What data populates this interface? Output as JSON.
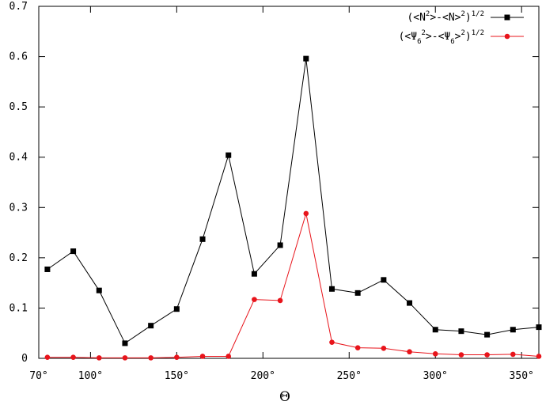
{
  "chart_data": {
    "type": "line",
    "xlabel": "Θ",
    "ylabel": "",
    "xlim": [
      70,
      360
    ],
    "ylim": [
      0,
      0.7
    ],
    "x_ticks": [
      70,
      100,
      150,
      200,
      250,
      300,
      350
    ],
    "x_tick_labels": [
      "70°",
      "100°",
      "150°",
      "200°",
      "250°",
      "300°",
      "350°"
    ],
    "y_ticks": [
      0,
      0.1,
      0.2,
      0.3,
      0.4,
      0.5,
      0.6,
      0.7
    ],
    "y_tick_labels": [
      "0",
      "0.1",
      "0.2",
      "0.3",
      "0.4",
      "0.5",
      "0.6",
      "0.7"
    ],
    "legend_position": "top-right",
    "grid": false,
    "x": [
      75,
      90,
      105,
      120,
      135,
      150,
      165,
      180,
      195,
      210,
      225,
      240,
      255,
      270,
      285,
      300,
      315,
      330,
      345,
      360
    ],
    "series": [
      {
        "name": "(<N2>-<N>2)1/2",
        "legend_main": [
          "(<N",
          ">-<N>",
          ")"
        ],
        "legend_sup": [
          "2",
          "2",
          "1/2"
        ],
        "color": "#000000",
        "marker": "square",
        "values": [
          0.177,
          0.213,
          0.135,
          0.03,
          0.065,
          0.098,
          0.237,
          0.404,
          0.168,
          0.225,
          0.596,
          0.138,
          0.13,
          0.156,
          0.11,
          0.057,
          0.054,
          0.047,
          0.057,
          0.062
        ]
      },
      {
        "name": "(<Ψ62>-<Ψ6>2)1/2",
        "legend_main": [
          "(<Ψ",
          ">-<Ψ",
          ">",
          ")"
        ],
        "legend_sub": [
          "6",
          "6"
        ],
        "legend_sup": [
          "2",
          "2",
          "1/2"
        ],
        "color": "#e8141b",
        "marker": "circle",
        "values": [
          0.002,
          0.002,
          0.001,
          0.001,
          0.001,
          0.002,
          0.004,
          0.004,
          0.117,
          0.115,
          0.288,
          0.032,
          0.021,
          0.02,
          0.013,
          0.009,
          0.007,
          0.007,
          0.008,
          0.004
        ]
      }
    ]
  }
}
